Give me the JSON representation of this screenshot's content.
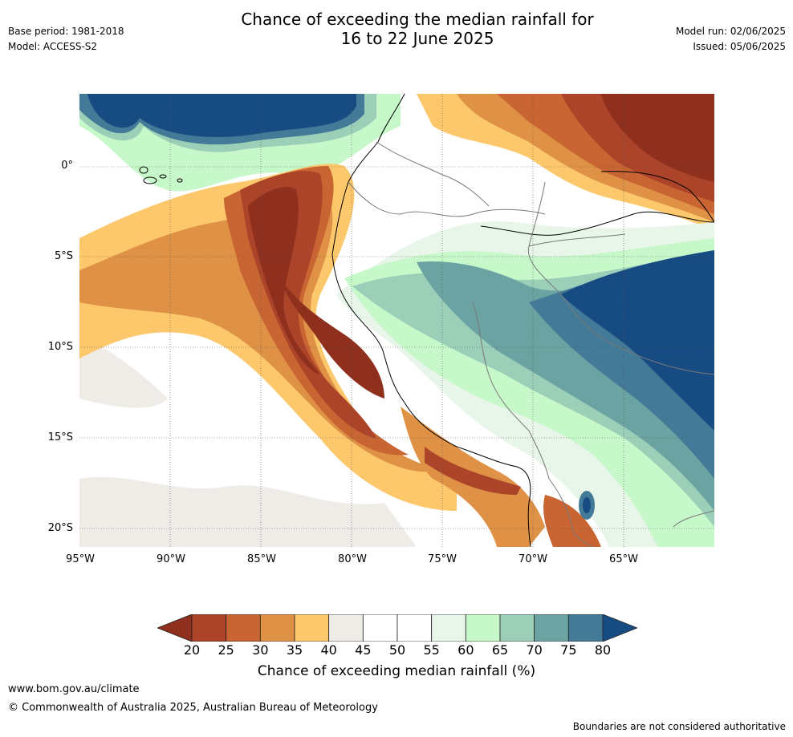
{
  "title": {
    "line1": "Chance of exceeding the median rainfall for",
    "line2": "16 to 22 June 2025"
  },
  "meta_left": {
    "base_period": "Base period: 1981-2018",
    "model": "Model: ACCESS-S2"
  },
  "meta_right": {
    "model_run": "Model run: 02/06/2025",
    "issued": "Issued: 05/06/2025"
  },
  "map": {
    "lat_labels": [
      "0°",
      "5°S",
      "10°S",
      "15°S",
      "20°S"
    ],
    "lon_labels": [
      "95°W",
      "90°W",
      "85°W",
      "80°W",
      "75°W",
      "70°W",
      "65°W"
    ]
  },
  "colorbar": {
    "title": "Chance of exceeding median rainfall (%)",
    "ticks": [
      "20",
      "25",
      "30",
      "35",
      "40",
      "45",
      "50",
      "55",
      "60",
      "65",
      "70",
      "75",
      "80"
    ],
    "colors": {
      "below20": "#8f2f1e",
      "b20_25": "#ab4428",
      "b25_30": "#c86532",
      "b30_35": "#df9245",
      "b35_40": "#fdc86c",
      "b40_45": "#efece8",
      "b45_50": "#ffffff",
      "b50_55": "#ffffff",
      "b55_60": "#e8f5e9",
      "b60_65": "#c6f8c9",
      "b65_70": "#9ccfb8",
      "b70_75": "#6ba3a3",
      "b75_80": "#437a98",
      "above80": "#174c83"
    }
  },
  "footer": {
    "url": "www.bom.gov.au/climate",
    "copyright": "© Commonwealth of Australia 2025, Australian Bureau of Meteorology",
    "note": "Boundaries are not considered authoritative"
  }
}
